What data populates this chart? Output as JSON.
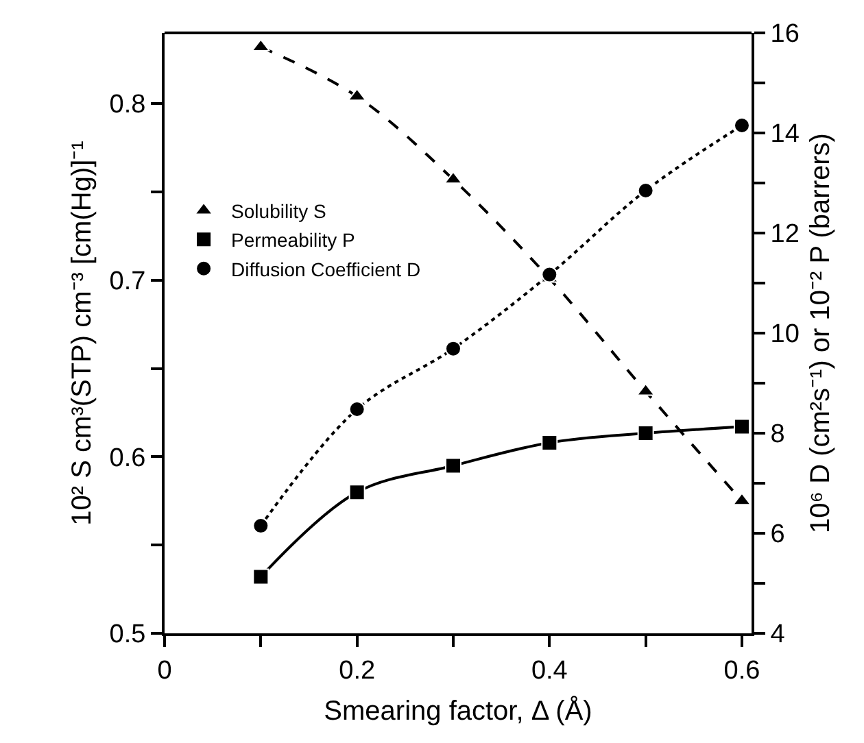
{
  "chart_data": {
    "type": "line",
    "xlabel": "Smearing factor, Δ (Å)",
    "ylabel": "10² S cm³(STP) cm⁻³ [cm(Hg)]⁻¹",
    "y2label": "10⁶ D (cm²s⁻¹) or 10⁻² P (barrers)",
    "x": [
      0.1,
      0.2,
      0.3,
      0.4,
      0.5,
      0.6
    ],
    "series": [
      {
        "name": "Solubility S",
        "color": "#000000",
        "values": [
          0.832,
          0.804,
          0.757,
          0.701,
          0.637,
          0.575
        ],
        "marker": "triangle",
        "line_style": "dashed"
      },
      {
        "name": "Permeability P",
        "color": "#000000",
        "values": [
          5.13,
          6.82,
          7.35,
          7.81,
          8.0,
          8.13
        ],
        "axis": "y2",
        "marker": "square",
        "line_style": "solid"
      },
      {
        "name": "Diffusion Coefficient D",
        "color": "#000000",
        "values": [
          6.15,
          8.48,
          9.69,
          11.17,
          12.85,
          14.15
        ],
        "axis": "y2",
        "marker": "circle",
        "line_style": "dotted"
      }
    ],
    "xlim": [
      0,
      0.61
    ],
    "xticks": [
      0,
      {
        "value": 0.1,
        "label": null
      },
      0.2,
      {
        "value": 0.3,
        "label": null
      },
      0.4,
      {
        "value": 0.5,
        "label": null
      },
      0.6
    ],
    "ylim": [
      0.5,
      0.84
    ],
    "yticks": [
      0.5,
      {
        "value": 0.55,
        "label": null
      },
      0.6,
      {
        "value": 0.65,
        "label": null
      },
      0.7,
      {
        "value": 0.75,
        "label": null
      },
      0.8
    ],
    "y2lim": [
      4,
      16
    ],
    "y2ticks": [
      4,
      {
        "value": 5,
        "label": null
      },
      6,
      {
        "value": 7,
        "label": null
      },
      8,
      {
        "value": 9,
        "label": null
      },
      10,
      {
        "value": 11,
        "label": null
      },
      12,
      {
        "value": 13,
        "label": null
      },
      14,
      {
        "value": 15,
        "label": null
      },
      16
    ],
    "legend": "top left"
  }
}
